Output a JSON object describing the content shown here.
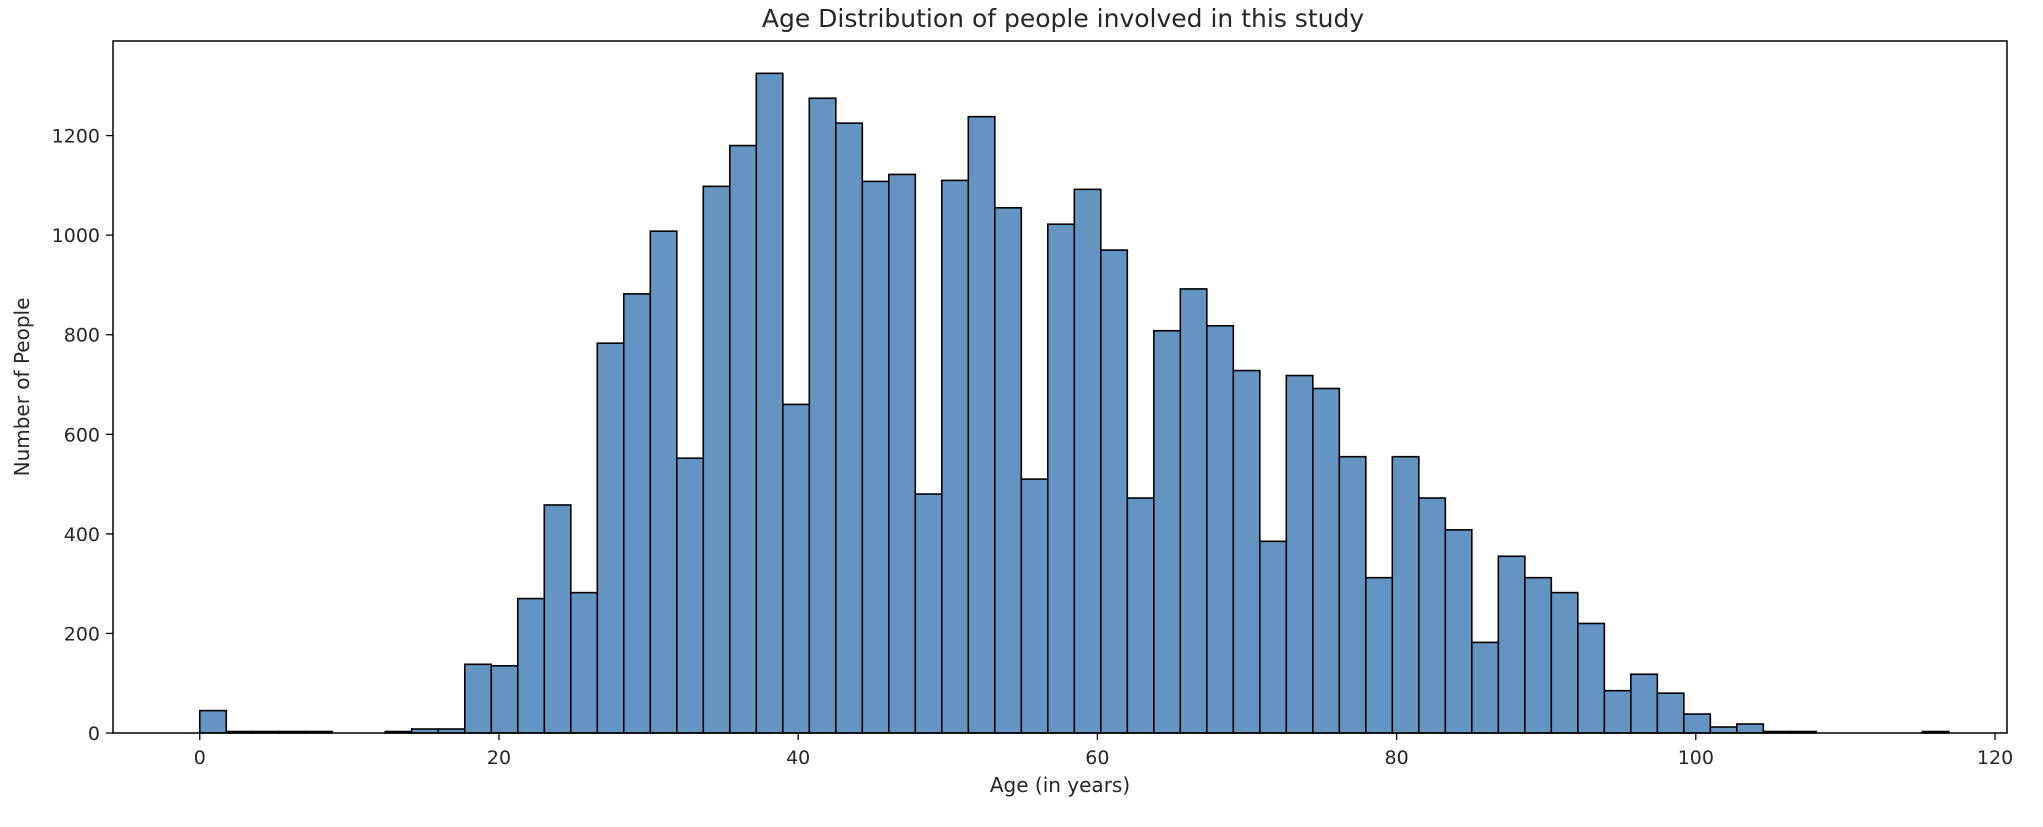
{
  "chart_data": {
    "type": "bar",
    "title": "Age Distribution of people involved in this study",
    "xlabel": "Age (in years)",
    "ylabel": "Number of People",
    "xlim": [
      -5.8,
      120.8
    ],
    "ylim": [
      0,
      1390
    ],
    "xticks": [
      0,
      20,
      40,
      60,
      80,
      100,
      120
    ],
    "yticks": [
      0,
      200,
      400,
      600,
      800,
      1000,
      1200
    ],
    "bin_width": 1.7714,
    "bin_start": 0.0,
    "grid": false,
    "bar_color": "#6495c2",
    "edge_color": "#000000",
    "values": [
      45,
      3,
      3,
      3,
      3,
      0,
      0,
      3,
      8,
      8,
      138,
      135,
      270,
      458,
      282,
      783,
      882,
      1008,
      552,
      1098,
      1180,
      1325,
      660,
      1275,
      1225,
      1108,
      1122,
      480,
      1110,
      1238,
      1055,
      510,
      1022,
      1092,
      970,
      472,
      808,
      892,
      818,
      728,
      385,
      718,
      692,
      555,
      312,
      555,
      472,
      408,
      182,
      355,
      312,
      282,
      220,
      85,
      118,
      80,
      38,
      12,
      18,
      3,
      3,
      0,
      0,
      0,
      0,
      3
    ]
  }
}
